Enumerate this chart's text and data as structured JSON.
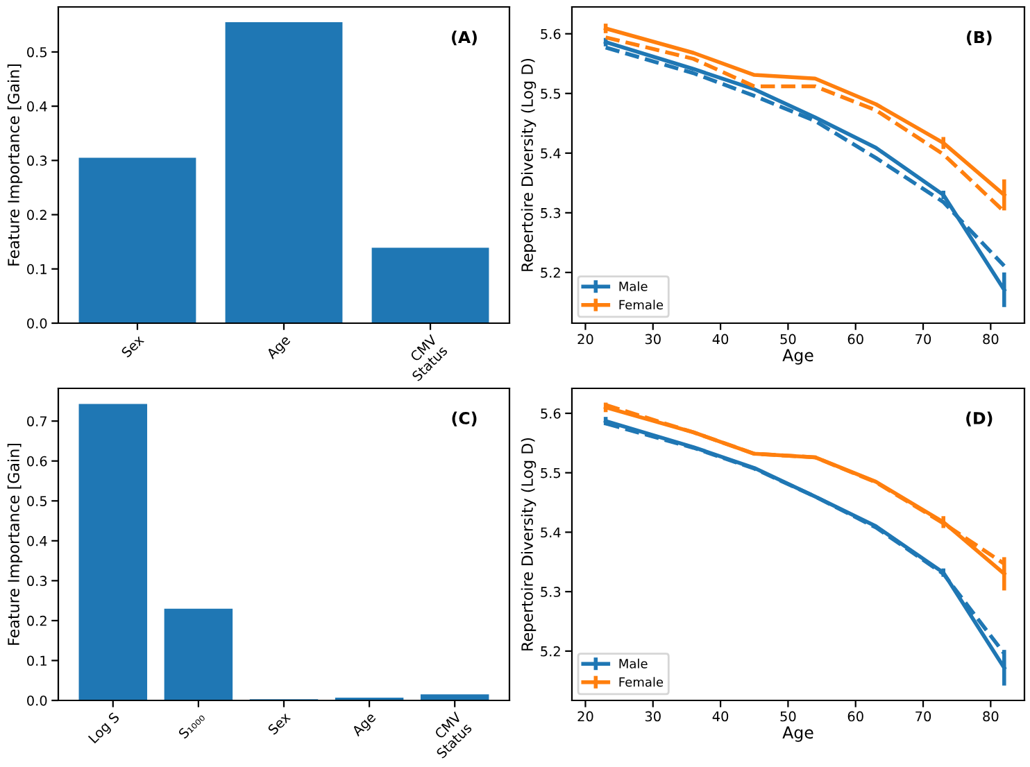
{
  "chart_data": [
    {
      "type": "bar",
      "categories": [
        "Sex",
        "Age",
        "CMV\nStatus"
      ],
      "values": [
        0.305,
        0.555,
        0.139
      ],
      "color": "#1f77b4",
      "ylabel": "Feature Importance [Gain]",
      "ylim": [
        0,
        0.583
      ],
      "yticks": [
        {
          "value": 0,
          "label": "0.0"
        },
        0.1,
        0.2,
        0.3,
        0.4,
        0.5
      ],
      "annotations": [
        "(A)"
      ],
      "grid": false
    },
    {
      "type": "line",
      "x": [
        23,
        36,
        45,
        54,
        63,
        73,
        82
      ],
      "xlabel": "Age",
      "ylabel": "Repertoire Diversity (Log D)",
      "xlim": [
        18,
        85
      ],
      "xticks": [
        20,
        30,
        40,
        50,
        60,
        70,
        80
      ],
      "ylim": [
        5.115,
        5.645
      ],
      "yticks": [
        5.2,
        5.3,
        5.4,
        5.5,
        5.6
      ],
      "annotations": [
        "(B)"
      ],
      "grid": false,
      "legend": "lower left",
      "marker": "none",
      "series": [
        {
          "name": "Male",
          "color": "#1f77b4",
          "line_style": "solid",
          "values": [
            5.586,
            5.541,
            5.507,
            5.46,
            5.409,
            5.33,
            5.171
          ],
          "errors": [
            0.007,
            null,
            null,
            null,
            null,
            0.007,
            0.029
          ]
        },
        {
          "name": "Female",
          "color": "#ff7f0e",
          "line_style": "solid",
          "values": [
            5.609,
            5.568,
            5.531,
            5.525,
            5.482,
            5.417,
            5.33
          ],
          "errors": [
            0.008,
            null,
            null,
            null,
            null,
            0.01,
            0.026
          ]
        },
        {
          "color": "#1f77b4",
          "line_style": "dashed",
          "values": [
            5.577,
            5.534,
            5.496,
            5.454,
            5.392,
            5.318,
            5.211
          ]
        },
        {
          "color": "#ff7f0e",
          "line_style": "dashed",
          "values": [
            5.594,
            5.558,
            5.512,
            5.512,
            5.472,
            5.398,
            5.302
          ]
        }
      ]
    },
    {
      "type": "bar",
      "categories": [
        "Log S",
        "S₁₀₀₀",
        "Sex",
        "Age",
        "CMV\nStatus"
      ],
      "values": [
        0.743,
        0.23,
        0.003,
        0.007,
        0.015
      ],
      "color": "#1f77b4",
      "ylabel": "Feature Importance [Gain]",
      "ylim": [
        0,
        0.782
      ],
      "yticks": [
        {
          "value": 0,
          "label": "0.0"
        },
        0.1,
        0.2,
        0.3,
        0.4,
        0.5,
        0.6,
        0.7
      ],
      "annotations": [
        "(C)"
      ],
      "grid": false
    },
    {
      "type": "line",
      "x": [
        23,
        36,
        45,
        54,
        63,
        73,
        82
      ],
      "xlabel": "Age",
      "ylabel": "Repertoire Diversity (Log D)",
      "xlim": [
        18,
        85
      ],
      "xticks": [
        20,
        30,
        40,
        50,
        60,
        70,
        80
      ],
      "ylim": [
        5.117,
        5.642
      ],
      "yticks": [
        5.2,
        5.3,
        5.4,
        5.5,
        5.6
      ],
      "annotations": [
        "(D)"
      ],
      "grid": false,
      "legend": "lower left",
      "marker": "none",
      "series": [
        {
          "name": "Male",
          "color": "#1f77b4",
          "line_style": "solid",
          "values": [
            5.587,
            5.543,
            5.508,
            5.46,
            5.41,
            5.332,
            5.172
          ],
          "errors": [
            0.007,
            null,
            null,
            null,
            null,
            0.007,
            0.03
          ]
        },
        {
          "name": "Female",
          "color": "#ff7f0e",
          "line_style": "solid",
          "values": [
            5.61,
            5.568,
            5.532,
            5.526,
            5.485,
            5.417,
            5.33
          ],
          "errors": [
            0.008,
            null,
            null,
            null,
            null,
            0.01,
            0.028
          ]
        },
        {
          "color": "#1f77b4",
          "line_style": "dashed",
          "values": [
            5.583,
            5.542,
            5.507,
            5.46,
            5.408,
            5.33,
            5.196
          ]
        },
        {
          "color": "#ff7f0e",
          "line_style": "dashed",
          "values": [
            5.614,
            5.568,
            5.532,
            5.526,
            5.484,
            5.415,
            5.347
          ]
        }
      ]
    }
  ]
}
